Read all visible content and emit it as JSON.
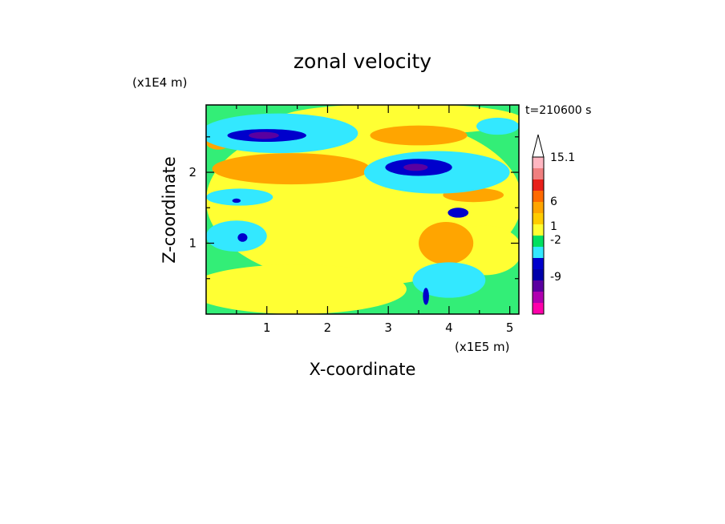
{
  "chart_data": {
    "type": "heatmap",
    "title": "zonal velocity",
    "xlabel": "X-coordinate",
    "ylabel": "Z-coordinate",
    "x_unit": "(x1E5 m)",
    "y_unit": "(x1E4 m)",
    "time_label": "t=210600 s",
    "xlim": [
      0,
      5.15
    ],
    "ylim": [
      0,
      2.95
    ],
    "x_ticks": [
      "1",
      "2",
      "3",
      "4",
      "5"
    ],
    "y_ticks": [
      "1",
      "2"
    ],
    "colorbar": {
      "labels": [
        "15.1",
        "6",
        "1",
        "-2",
        "-9"
      ],
      "colors": [
        "#ffb6c1",
        "#f07f7f",
        "#e8201a",
        "#ff6a00",
        "#ffa500",
        "#ffcc00",
        "#ffff33",
        "#00e060",
        "#33e8ff",
        "#0000cc",
        "#0000aa",
        "#5a00a0",
        "#b000b0",
        "#ff00aa"
      ],
      "max_arrow_color": "#ffffff"
    },
    "background_color": "#33ee77",
    "contour_regions": [
      {
        "level": "1 to 6",
        "color": "#ffff33",
        "cx": 2.6,
        "cy": 1.6,
        "rx": 2.6,
        "ry": 1.2
      },
      {
        "level": "1 to 6",
        "color": "#ffff33",
        "cx": 1.5,
        "cy": 0.35,
        "rx": 1.8,
        "ry": 0.35
      },
      {
        "level": "1 to 6",
        "color": "#ffff33",
        "cx": 4.6,
        "cy": 0.9,
        "rx": 0.6,
        "ry": 0.35
      },
      {
        "level": "1 to 6",
        "color": "#ffff33",
        "cx": 3.2,
        "cy": 2.75,
        "rx": 2.0,
        "ry": 0.22
      },
      {
        "level": "3 to 6",
        "color": "#ffa500",
        "cx": 1.4,
        "cy": 2.05,
        "rx": 1.3,
        "ry": 0.22
      },
      {
        "level": "3 to 6",
        "color": "#ffa500",
        "cx": 3.5,
        "cy": 2.52,
        "rx": 0.8,
        "ry": 0.14
      },
      {
        "level": "3 to 6",
        "color": "#ffa500",
        "cx": 3.95,
        "cy": 1.0,
        "rx": 0.45,
        "ry": 0.3
      },
      {
        "level": "3 to 6",
        "color": "#ffa500",
        "cx": 4.4,
        "cy": 1.68,
        "rx": 0.5,
        "ry": 0.1
      },
      {
        "level": "3 to 6",
        "color": "#ffa500",
        "cx": 0.2,
        "cy": 2.42,
        "rx": 0.2,
        "ry": 0.1
      },
      {
        "level": "-2 to 0",
        "color": "#33e8ff",
        "cx": 1.2,
        "cy": 2.55,
        "rx": 1.3,
        "ry": 0.28
      },
      {
        "level": "-2 to 0",
        "color": "#33e8ff",
        "cx": 3.8,
        "cy": 2.0,
        "rx": 1.2,
        "ry": 0.3
      },
      {
        "level": "-2 to 0",
        "color": "#33e8ff",
        "cx": 4.0,
        "cy": 0.48,
        "rx": 0.6,
        "ry": 0.25
      },
      {
        "level": "-2 to 0",
        "color": "#33e8ff",
        "cx": 0.55,
        "cy": 1.65,
        "rx": 0.55,
        "ry": 0.12
      },
      {
        "level": "-2 to 0",
        "color": "#33e8ff",
        "cx": 0.5,
        "cy": 1.1,
        "rx": 0.5,
        "ry": 0.22
      },
      {
        "level": "-2 to 0",
        "color": "#33e8ff",
        "cx": 4.8,
        "cy": 2.65,
        "rx": 0.35,
        "ry": 0.12
      },
      {
        "level": "-9 to -2",
        "color": "#0000cc",
        "cx": 1.0,
        "cy": 2.52,
        "rx": 0.65,
        "ry": 0.09
      },
      {
        "level": "-9 to -2",
        "color": "#0000cc",
        "cx": 3.5,
        "cy": 2.07,
        "rx": 0.55,
        "ry": 0.12
      },
      {
        "level": "-9 to -2",
        "color": "#0000cc",
        "cx": 4.15,
        "cy": 1.43,
        "rx": 0.17,
        "ry": 0.07
      },
      {
        "level": "-9 to -2",
        "color": "#0000cc",
        "cx": 0.6,
        "cy": 1.08,
        "rx": 0.08,
        "ry": 0.06
      },
      {
        "level": "-9 to -2",
        "color": "#0000cc",
        "cx": 0.5,
        "cy": 1.6,
        "rx": 0.07,
        "ry": 0.03
      },
      {
        "level": "-9 to -2",
        "color": "#0000cc",
        "cx": 3.62,
        "cy": 0.25,
        "rx": 0.05,
        "ry": 0.12
      },
      {
        "level": "-9 to -2",
        "color": "#5a00a0",
        "cx": 0.95,
        "cy": 2.52,
        "rx": 0.25,
        "ry": 0.05
      },
      {
        "level": "-9 to -2",
        "color": "#5a00a0",
        "cx": 3.45,
        "cy": 2.07,
        "rx": 0.2,
        "ry": 0.05
      }
    ]
  }
}
